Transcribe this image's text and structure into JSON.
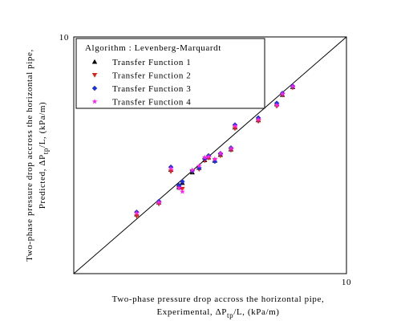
{
  "chart_data": {
    "type": "scatter",
    "x_label": [
      "Two-phase pressure drop accross the horizontal pipe,",
      "Experimental, ΔP",
      "tp",
      "/L, (kPa/m)"
    ],
    "y_label": [
      "Two-phase pressure drop accross the horizontal pipe,",
      "Predicted, ΔP",
      "tp",
      "/L, (kPa/m)"
    ],
    "legend_title": "Algorithm : Levenberg-Marquardt",
    "legend": "upper left",
    "log_scale": true,
    "diagonal": true,
    "xlim": [
      1,
      10
    ],
    "ylim": [
      1,
      10
    ],
    "xticks": [
      10
    ],
    "yticks": [
      10
    ],
    "x": [
      1.7,
      2.05,
      2.27,
      2.43,
      2.5,
      2.72,
      2.88,
      3.02,
      3.12,
      3.29,
      3.45,
      3.77,
      3.9,
      4.75,
      5.55,
      5.82,
      6.35
    ],
    "series": [
      {
        "name": "Transfer Function 1",
        "color": "#000000",
        "marker": "triangle-up",
        "values": [
          1.78,
          2.0,
          2.75,
          2.32,
          2.42,
          2.68,
          2.8,
          3.02,
          3.1,
          3.0,
          3.18,
          3.35,
          4.15,
          4.45,
          5.2,
          5.7,
          6.15
        ]
      },
      {
        "name": "Transfer Function 2",
        "color": "#e0201a",
        "marker": "triangle-down",
        "values": [
          1.75,
          1.97,
          2.7,
          2.3,
          2.28,
          2.7,
          2.76,
          3.0,
          3.08,
          3.02,
          3.15,
          3.32,
          4.1,
          4.4,
          5.1,
          5.68,
          6.1
        ]
      },
      {
        "name": "Transfer Function 3",
        "color": "#1a2ee0",
        "marker": "diamond",
        "values": [
          1.82,
          2.02,
          2.82,
          2.36,
          2.45,
          2.72,
          2.8,
          3.06,
          3.15,
          2.98,
          3.22,
          3.4,
          4.25,
          4.55,
          5.25,
          5.78,
          6.2
        ]
      },
      {
        "name": "Transfer Function 4",
        "color": "#ff22ee",
        "marker": "star",
        "values": [
          1.8,
          2.0,
          2.78,
          2.3,
          2.22,
          2.74,
          2.85,
          3.1,
          3.12,
          3.05,
          3.22,
          3.38,
          4.2,
          4.48,
          5.15,
          5.75,
          6.18
        ]
      }
    ]
  }
}
